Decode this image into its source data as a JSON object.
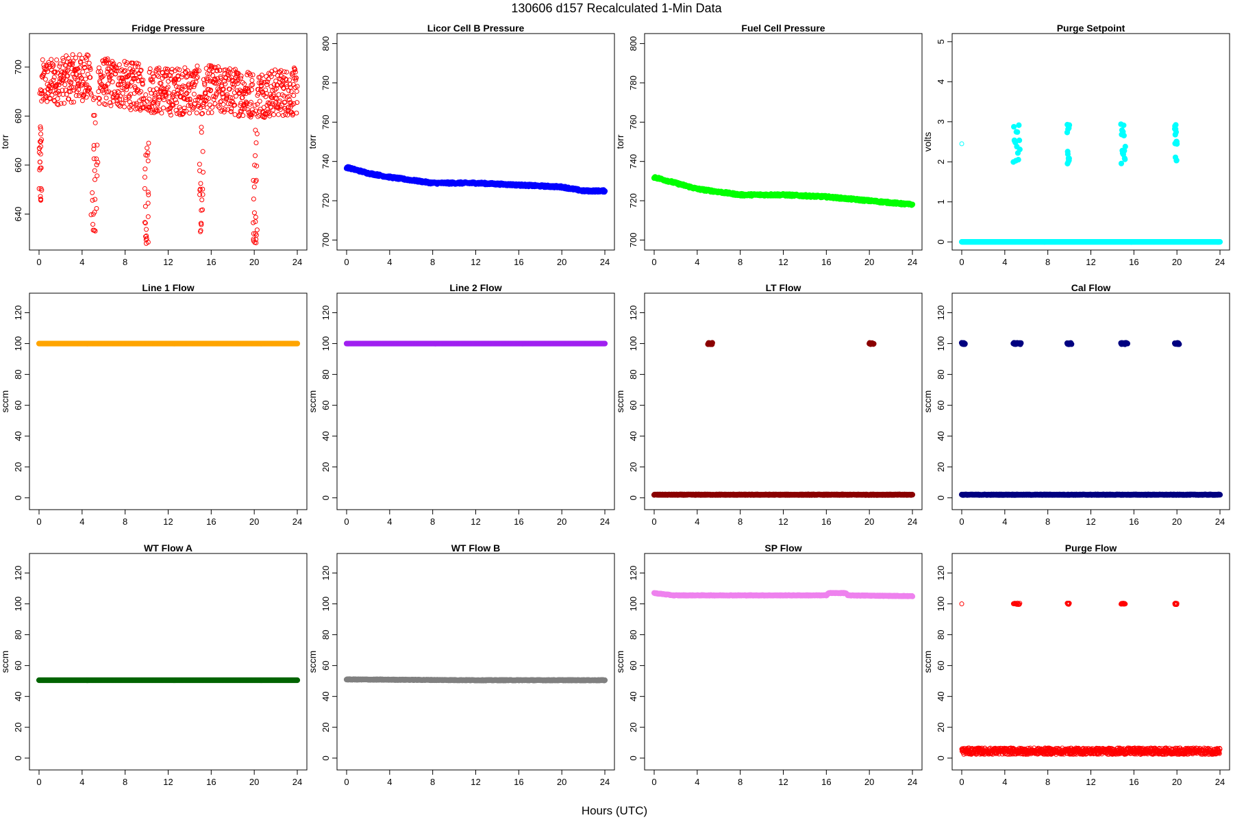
{
  "title": "130606   d157   Recalculated 1-Min Data",
  "xlabel": "Hours (UTC)",
  "x_ticks": [
    0,
    4,
    8,
    12,
    16,
    20,
    24
  ],
  "chart_data": [
    {
      "type": "scatter",
      "title": "Fridge Pressure",
      "ylabel": "torr",
      "color": "#ff0000",
      "marker": "open",
      "xlim": [
        0,
        24
      ],
      "ylim": [
        627,
        712
      ],
      "yticks": [
        640,
        660,
        680,
        700
      ],
      "pattern": "noisy",
      "base": [
        [
          0,
          693
        ],
        [
          4,
          696
        ],
        [
          6,
          694
        ],
        [
          12,
          690
        ],
        [
          16,
          691
        ],
        [
          20,
          689
        ],
        [
          24,
          690
        ]
      ],
      "noise": 14,
      "dips": [
        [
          0.0,
          0.25,
          645
        ],
        [
          4.8,
          5.5,
          633
        ],
        [
          9.8,
          10.2,
          628
        ],
        [
          14.9,
          15.3,
          631
        ],
        [
          19.9,
          20.3,
          628
        ]
      ]
    },
    {
      "type": "scatter",
      "title": "Licor Cell B Pressure",
      "ylabel": "torr",
      "color": "#0000ff",
      "marker": "filled",
      "xlim": [
        0,
        24
      ],
      "ylim": [
        697,
        803
      ],
      "yticks": [
        700,
        720,
        740,
        760,
        780,
        800
      ],
      "pattern": "smooth",
      "base": [
        [
          0,
          737
        ],
        [
          2,
          734
        ],
        [
          4,
          732
        ],
        [
          8,
          729
        ],
        [
          12,
          729
        ],
        [
          16,
          728
        ],
        [
          20,
          727
        ],
        [
          22,
          725
        ],
        [
          24,
          725
        ]
      ],
      "noise": 0.5
    },
    {
      "type": "scatter",
      "title": "Fuel Cell Pressure",
      "ylabel": "torr",
      "color": "#00ff00",
      "marker": "filled",
      "xlim": [
        0,
        24
      ],
      "ylim": [
        697,
        803
      ],
      "yticks": [
        700,
        720,
        740,
        760,
        780,
        800
      ],
      "pattern": "smooth",
      "base": [
        [
          0,
          732
        ],
        [
          4,
          726
        ],
        [
          8,
          723
        ],
        [
          12,
          723
        ],
        [
          16,
          722
        ],
        [
          20,
          720
        ],
        [
          22,
          719
        ],
        [
          24,
          718
        ]
      ],
      "noise": 0.5
    },
    {
      "type": "scatter",
      "title": "Purge Setpoint",
      "ylabel": "volts",
      "color": "#00ffff",
      "marker": "filled",
      "xlim": [
        0,
        24
      ],
      "ylim": [
        -0.1,
        5.1
      ],
      "yticks": [
        0,
        1,
        2,
        3,
        4,
        5
      ],
      "pattern": "flat",
      "base": [
        [
          0,
          0
        ],
        [
          24,
          0
        ]
      ],
      "noise": 0,
      "clusters": [
        [
          0.0,
          0.05,
          2.45,
          "open"
        ],
        [
          4.8,
          5.4,
          2.45,
          "filled"
        ],
        [
          9.8,
          10.0,
          2.45,
          "filled"
        ],
        [
          14.8,
          15.2,
          2.45,
          "filled"
        ],
        [
          19.8,
          20.0,
          2.45,
          "filled"
        ]
      ]
    },
    {
      "type": "scatter",
      "title": "Line 1 Flow",
      "ylabel": "sccm",
      "color": "#ffa500",
      "marker": "filled",
      "xlim": [
        0,
        24
      ],
      "ylim": [
        -5,
        130
      ],
      "yticks": [
        0,
        20,
        40,
        60,
        80,
        100,
        120
      ],
      "pattern": "flat",
      "base": [
        [
          0,
          100
        ],
        [
          24,
          100
        ]
      ],
      "noise": 0
    },
    {
      "type": "scatter",
      "title": "Line 2 Flow",
      "ylabel": "sccm",
      "color": "#a020f0",
      "marker": "filled",
      "xlim": [
        0,
        24
      ],
      "ylim": [
        -5,
        130
      ],
      "yticks": [
        0,
        20,
        40,
        60,
        80,
        100,
        120
      ],
      "pattern": "flat",
      "base": [
        [
          0,
          100
        ],
        [
          24,
          100
        ]
      ],
      "noise": 0
    },
    {
      "type": "scatter",
      "title": "LT Flow",
      "ylabel": "sccm",
      "color": "#8b0000",
      "marker": "filled",
      "xlim": [
        0,
        24
      ],
      "ylim": [
        -5,
        130
      ],
      "yticks": [
        0,
        20,
        40,
        60,
        80,
        100,
        120
      ],
      "pattern": "flat",
      "base": [
        [
          0,
          2
        ],
        [
          24,
          2
        ]
      ],
      "noise": 0.2,
      "clusters": [
        [
          5.0,
          5.4,
          100,
          "filled"
        ],
        [
          20.0,
          20.4,
          100,
          "filled"
        ]
      ]
    },
    {
      "type": "scatter",
      "title": "Cal Flow",
      "ylabel": "sccm",
      "color": "#000080",
      "marker": "filled",
      "xlim": [
        0,
        24
      ],
      "ylim": [
        -5,
        130
      ],
      "yticks": [
        0,
        20,
        40,
        60,
        80,
        100,
        120
      ],
      "pattern": "flat",
      "base": [
        [
          0,
          2
        ],
        [
          24,
          2
        ]
      ],
      "noise": 0.2,
      "clusters": [
        [
          0.0,
          0.3,
          100,
          "filled"
        ],
        [
          4.8,
          5.5,
          100,
          "filled"
        ],
        [
          9.8,
          10.2,
          100,
          "filled"
        ],
        [
          14.8,
          15.4,
          100,
          "filled"
        ],
        [
          19.8,
          20.2,
          100,
          "filled"
        ]
      ]
    },
    {
      "type": "scatter",
      "title": "WT Flow A",
      "ylabel": "sccm",
      "color": "#006400",
      "marker": "filled",
      "xlim": [
        0,
        24
      ],
      "ylim": [
        -5,
        130
      ],
      "yticks": [
        0,
        20,
        40,
        60,
        80,
        100,
        120
      ],
      "pattern": "flat",
      "base": [
        [
          0,
          50.5
        ],
        [
          24,
          50.5
        ]
      ],
      "noise": 0
    },
    {
      "type": "scatter",
      "title": "WT Flow B",
      "ylabel": "sccm",
      "color": "#808080",
      "marker": "filled",
      "xlim": [
        0,
        24
      ],
      "ylim": [
        -5,
        130
      ],
      "yticks": [
        0,
        20,
        40,
        60,
        80,
        100,
        120
      ],
      "pattern": "smooth",
      "base": [
        [
          0,
          51
        ],
        [
          12,
          50.5
        ],
        [
          24,
          50.5
        ]
      ],
      "noise": 0.2
    },
    {
      "type": "scatter",
      "title": "SP Flow",
      "ylabel": "sccm",
      "color": "#ee82ee",
      "marker": "filled",
      "xlim": [
        0,
        24
      ],
      "ylim": [
        -5,
        130
      ],
      "yticks": [
        0,
        20,
        40,
        60,
        80,
        100,
        120
      ],
      "pattern": "step",
      "base": [
        [
          0,
          107
        ],
        [
          1.8,
          105.5
        ],
        [
          16,
          105.5
        ],
        [
          16.2,
          107
        ],
        [
          17.8,
          107
        ],
        [
          18,
          105.5
        ],
        [
          24,
          105
        ]
      ],
      "noise": 0.2
    },
    {
      "type": "scatter",
      "title": "Purge Flow",
      "ylabel": "sccm",
      "color": "#ff0000",
      "marker": "open",
      "xlim": [
        0,
        24
      ],
      "ylim": [
        -5,
        130
      ],
      "yticks": [
        0,
        20,
        40,
        60,
        80,
        100,
        120
      ],
      "pattern": "noisy",
      "base": [
        [
          0,
          4.5
        ],
        [
          24,
          4.5
        ]
      ],
      "noise": 3,
      "clusters": [
        [
          0.0,
          0.05,
          100,
          "open"
        ],
        [
          4.8,
          5.4,
          100,
          "open"
        ],
        [
          9.8,
          10.0,
          100,
          "open"
        ],
        [
          14.8,
          15.2,
          100,
          "open"
        ],
        [
          19.8,
          20.0,
          100,
          "open"
        ]
      ]
    }
  ]
}
